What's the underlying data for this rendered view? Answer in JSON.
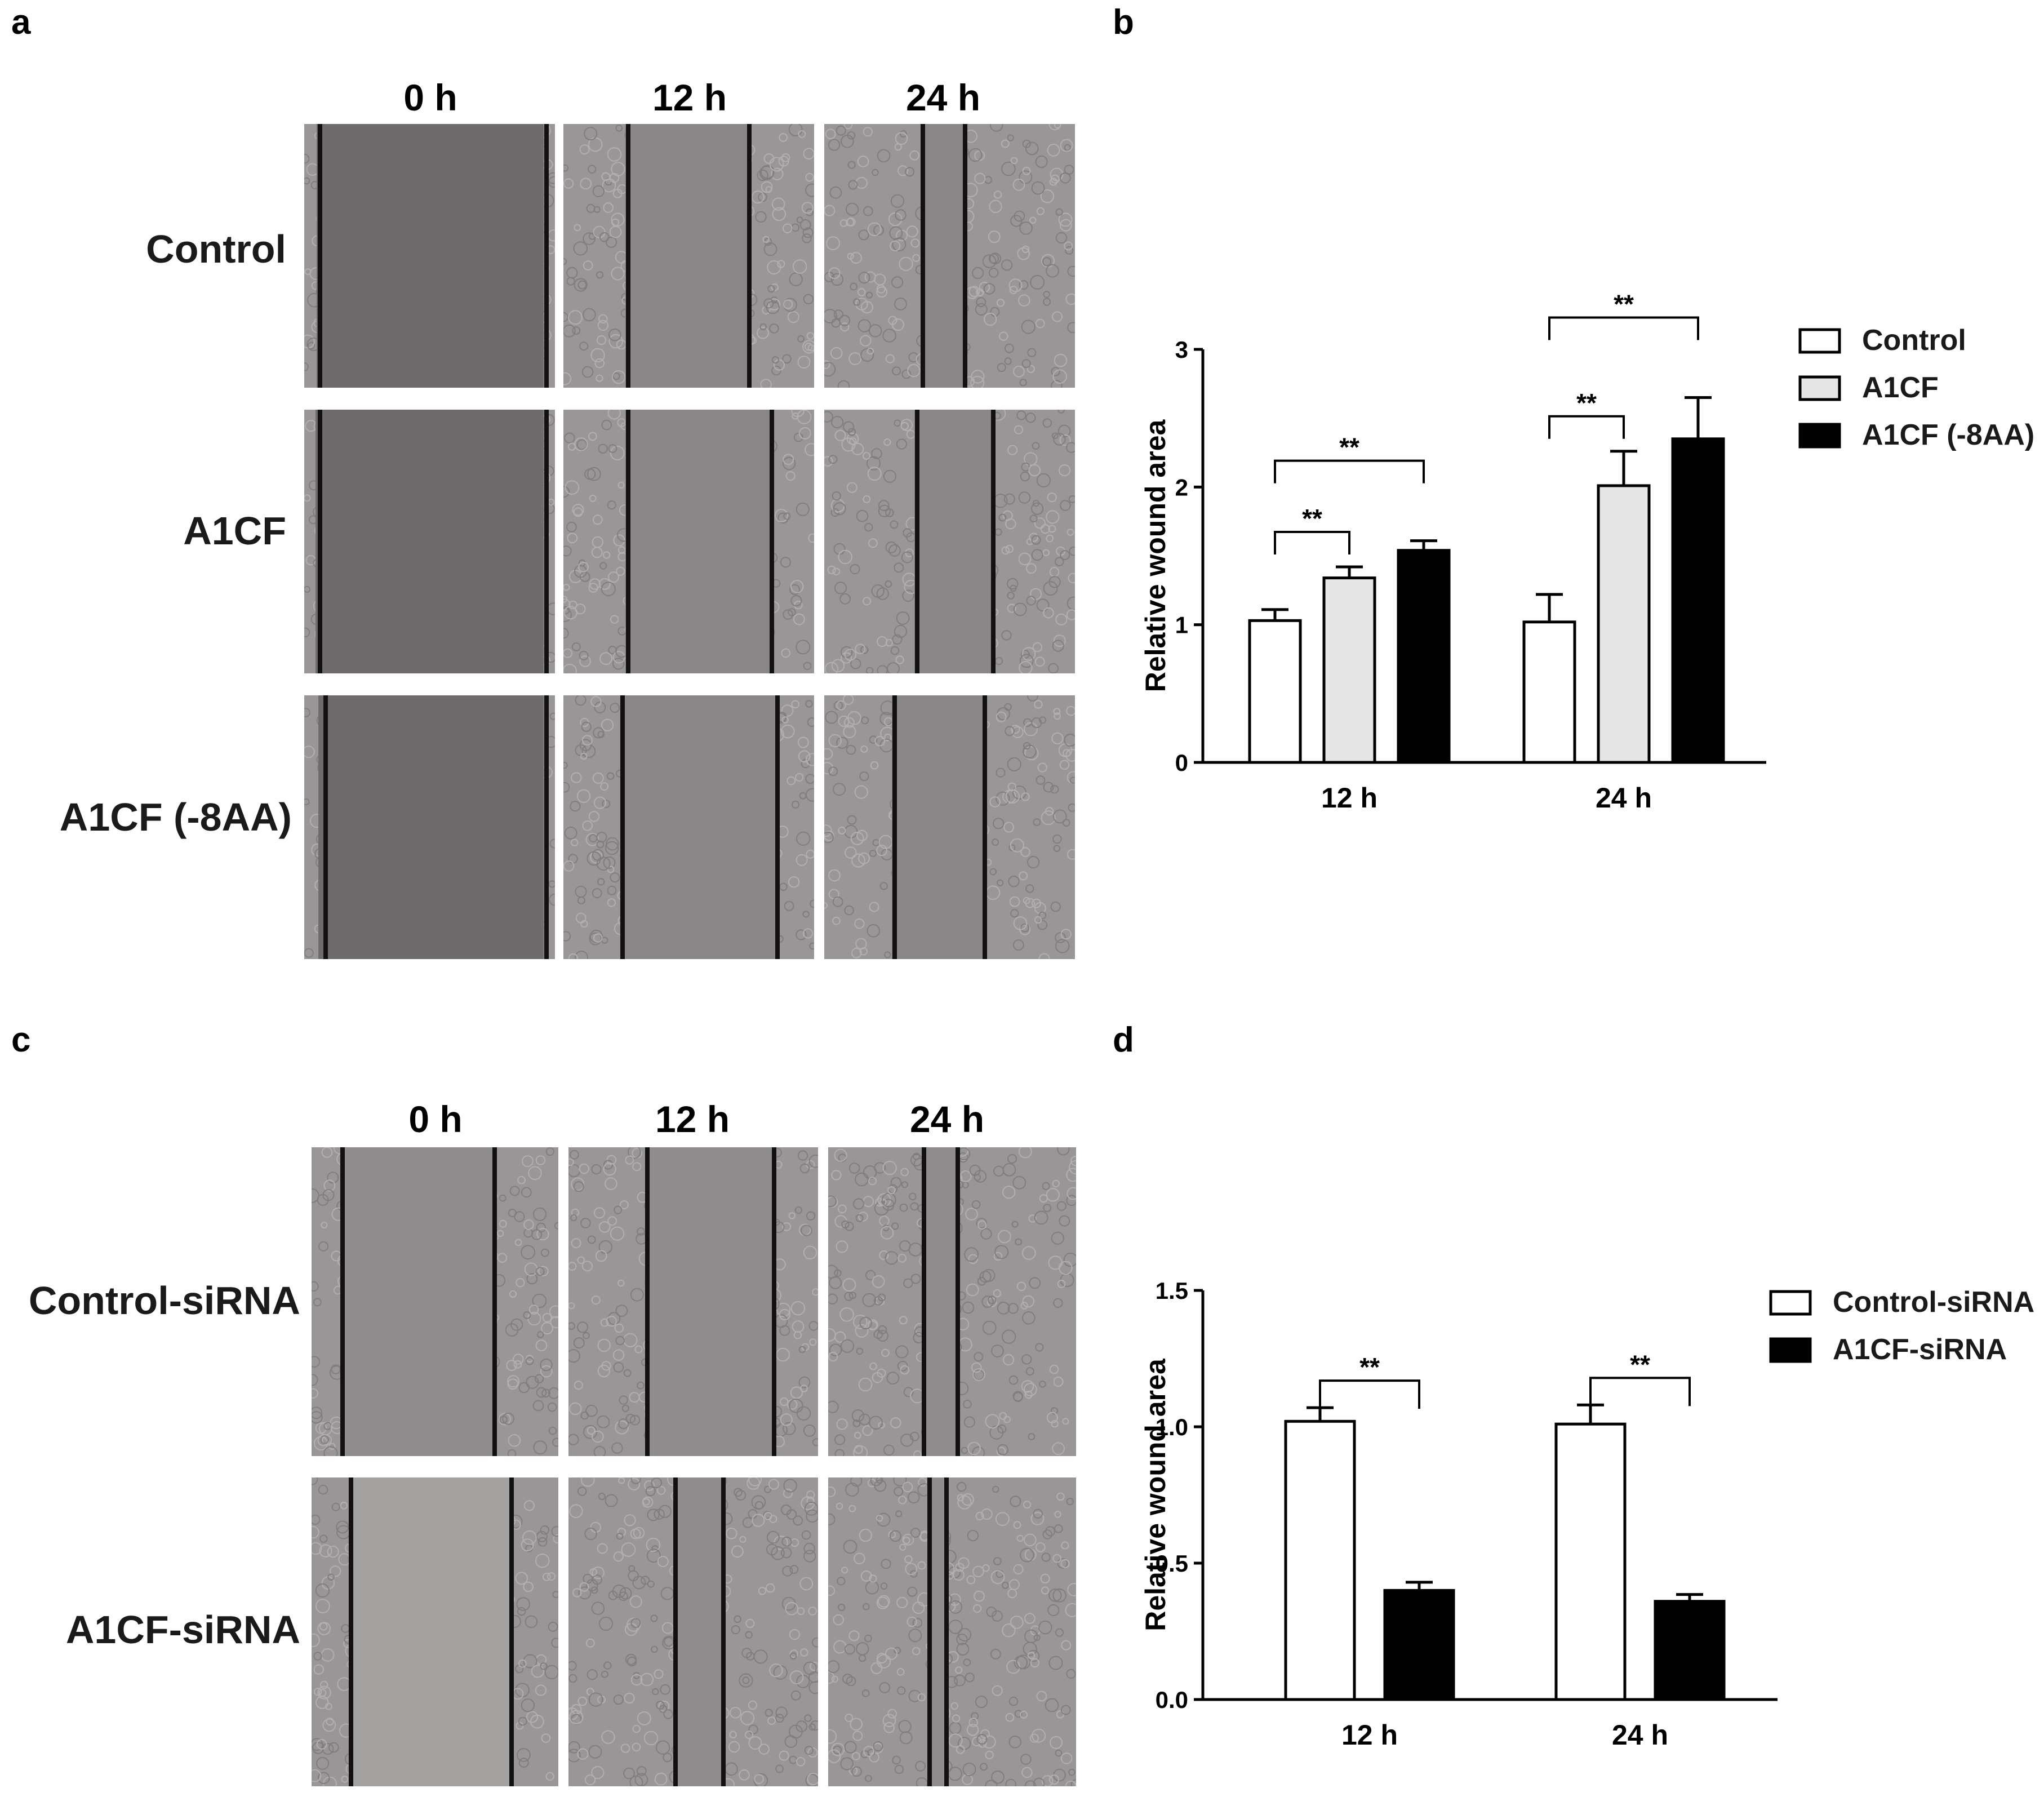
{
  "panel_a": {
    "letter": "a",
    "time_labels": [
      "0 h",
      "12 h",
      "24 h"
    ],
    "row_labels": [
      "Control",
      "A1CF",
      "A1CF (-8AA)"
    ]
  },
  "panel_b": {
    "letter": "b"
  },
  "panel_c": {
    "letter": "c",
    "time_labels": [
      "0 h",
      "12 h",
      "24 h"
    ],
    "row_labels": [
      "Control-siRNA",
      "A1CF-siRNA"
    ]
  },
  "panel_d": {
    "letter": "d"
  },
  "chart_data": [
    {
      "type": "bar",
      "panel": "b",
      "categories": [
        "12 h",
        "24 h"
      ],
      "ylabel": "Relative wound area",
      "ylim": [
        0,
        3
      ],
      "yticks": [
        "0",
        "1",
        "2",
        "3"
      ],
      "series": [
        {
          "name": "Control",
          "values": [
            1.03,
            1.02
          ],
          "errors": [
            0.08,
            0.2
          ],
          "color": "#ffffff"
        },
        {
          "name": "A1CF",
          "values": [
            1.34,
            2.01
          ],
          "errors": [
            0.08,
            0.25
          ],
          "color": "#e6e6e6"
        },
        {
          "name": "A1CF (-8AA)",
          "values": [
            1.54,
            2.35
          ],
          "errors": [
            0.07,
            0.3
          ],
          "color": "#000000"
        }
      ],
      "significance": [
        {
          "category": 0,
          "from": 0,
          "to": 1,
          "label": "**"
        },
        {
          "category": 0,
          "from": 0,
          "to": 2,
          "label": "**"
        },
        {
          "category": 1,
          "from": 0,
          "to": 1,
          "label": "**"
        },
        {
          "category": 1,
          "from": 0,
          "to": 2,
          "label": "**"
        }
      ],
      "legend": "right"
    },
    {
      "type": "bar",
      "panel": "d",
      "categories": [
        "12 h",
        "24 h"
      ],
      "ylabel": "Relative wound area",
      "ylim": [
        0,
        1.5
      ],
      "yticks": [
        "0.0",
        "0.5",
        "1.0",
        "1.5"
      ],
      "series": [
        {
          "name": "Control-siRNA",
          "values": [
            1.02,
            1.01
          ],
          "errors": [
            0.05,
            0.07
          ],
          "color": "#ffffff"
        },
        {
          "name": "A1CF-siRNA",
          "values": [
            0.4,
            0.36
          ],
          "errors": [
            0.03,
            0.025
          ],
          "color": "#000000"
        }
      ],
      "significance": [
        {
          "category": 0,
          "from": 0,
          "to": 1,
          "label": "**"
        },
        {
          "category": 1,
          "from": 0,
          "to": 1,
          "label": "**"
        }
      ],
      "legend": "right"
    }
  ]
}
